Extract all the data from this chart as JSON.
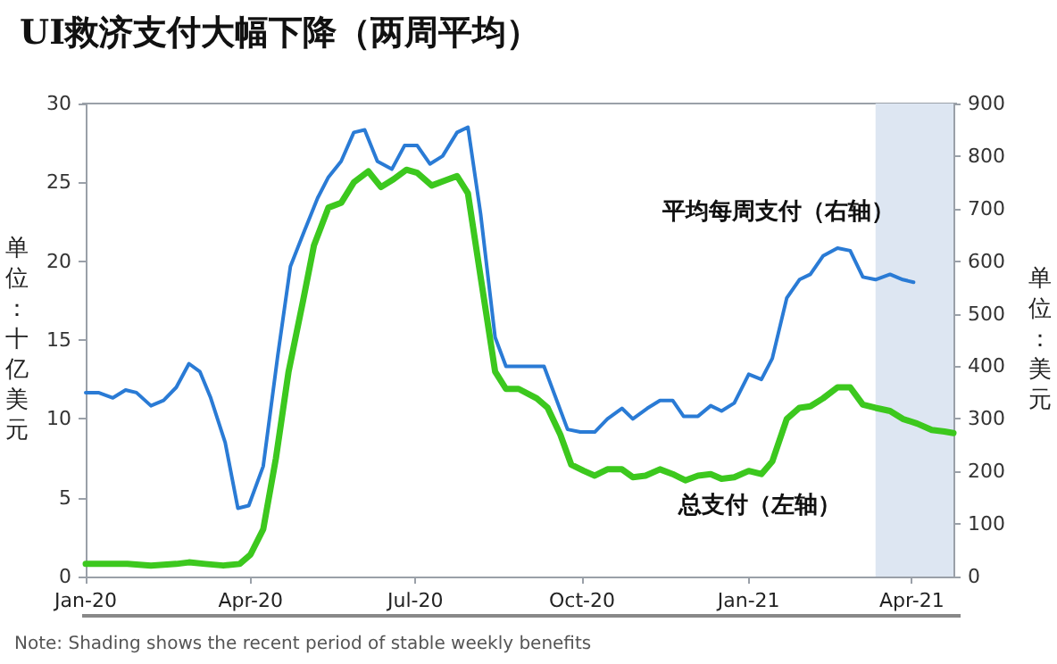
{
  "chart_data": {
    "type": "line",
    "title": "UI救济支付大幅下降（两周平均）",
    "ylabel": "单位：十亿美元",
    "y2label": "单位：美元",
    "annotations": [
      "Note: Shading shows the recent period of stable weekly benefits"
    ],
    "xlim": [
      "2020-01-01",
      "2021-04-24"
    ],
    "xticks": [
      {
        "value": "2020-01-01",
        "label": "Jan-20"
      },
      {
        "value": "2020-04-01",
        "label": "Apr-20"
      },
      {
        "value": "2020-07-01",
        "label": "Jul-20"
      },
      {
        "value": "2020-10-01",
        "label": "Oct-20"
      },
      {
        "value": "2021-01-01",
        "label": "Jan-21"
      },
      {
        "value": "2021-04-01",
        "label": "Apr-21"
      }
    ],
    "ylim": [
      0,
      30
    ],
    "yticks": [
      0,
      5,
      10,
      15,
      20,
      25,
      30
    ],
    "y2lim": [
      0,
      900
    ],
    "y2ticks": [
      0,
      100,
      200,
      300,
      400,
      500,
      600,
      700,
      800,
      900
    ],
    "grid": false,
    "legend": false,
    "marker": "none",
    "line_style": "solid",
    "bands": [
      {
        "axis": "x",
        "from": "2021-03-12",
        "to": "2021-04-24",
        "color": "#dde6f2"
      }
    ],
    "series": [
      {
        "name": "平均每周支付（右轴）",
        "color": "#2a7bd5",
        "axis": "y2",
        "x": [
          "2020-01-01",
          "2020-01-08",
          "2020-01-16",
          "2020-01-23",
          "2020-01-29",
          "2020-02-06",
          "2020-02-13",
          "2020-02-20",
          "2020-02-27",
          "2020-03-04",
          "2020-03-10",
          "2020-03-18",
          "2020-03-25",
          "2020-03-31",
          "2020-04-08",
          "2020-04-16",
          "2020-04-23",
          "2020-05-01",
          "2020-05-08",
          "2020-05-14",
          "2020-05-21",
          "2020-05-28",
          "2020-06-03",
          "2020-06-10",
          "2020-06-18",
          "2020-06-25",
          "2020-07-02",
          "2020-07-09",
          "2020-07-16",
          "2020-07-24",
          "2020-07-30",
          "2020-08-06",
          "2020-08-14",
          "2020-08-20",
          "2020-09-06",
          "2020-09-10",
          "2020-09-23",
          "2020-09-30",
          "2020-10-08",
          "2020-10-15",
          "2020-10-23",
          "2020-10-29",
          "2020-11-06",
          "2020-11-13",
          "2020-11-20",
          "2020-11-26",
          "2020-12-04",
          "2020-12-11",
          "2020-12-17",
          "2020-12-24",
          "2021-01-01",
          "2021-01-08",
          "2021-01-14",
          "2021-01-22",
          "2021-01-29",
          "2021-02-04",
          "2021-02-11",
          "2021-02-19",
          "2021-02-26",
          "2021-03-05",
          "2021-03-12",
          "2021-03-20",
          "2021-03-27",
          "2021-04-02"
        ],
        "values": [
          350,
          350,
          340,
          355,
          350,
          325,
          335,
          360,
          405,
          390,
          340,
          255,
          130,
          135,
          210,
          420,
          590,
          660,
          720,
          760,
          790,
          845,
          850,
          790,
          775,
          820,
          820,
          785,
          800,
          845,
          855,
          690,
          455,
          400,
          400,
          400,
          280,
          275,
          275,
          300,
          320,
          300,
          320,
          335,
          335,
          305,
          305,
          325,
          315,
          330,
          385,
          375,
          415,
          530,
          565,
          575,
          610,
          625,
          620,
          570,
          565,
          575,
          565,
          560
        ]
      },
      {
        "name": "总支付（左轴）",
        "color": "#3cc81e",
        "axis": "y",
        "x": [
          "2020-01-01",
          "2020-01-11",
          "2020-01-24",
          "2020-02-06",
          "2020-02-20",
          "2020-02-27",
          "2020-03-07",
          "2020-03-17",
          "2020-03-26",
          "2020-04-01",
          "2020-04-08",
          "2020-04-15",
          "2020-04-22",
          "2020-04-30",
          "2020-05-06",
          "2020-05-14",
          "2020-05-21",
          "2020-05-28",
          "2020-06-05",
          "2020-06-12",
          "2020-06-19",
          "2020-06-26",
          "2020-07-02",
          "2020-07-10",
          "2020-07-17",
          "2020-07-24",
          "2020-07-30",
          "2020-08-06",
          "2020-08-14",
          "2020-08-20",
          "2020-08-27",
          "2020-09-06",
          "2020-09-12",
          "2020-09-19",
          "2020-09-25",
          "2020-10-02",
          "2020-10-08",
          "2020-10-15",
          "2020-10-23",
          "2020-10-29",
          "2020-11-05",
          "2020-11-13",
          "2020-11-20",
          "2020-11-27",
          "2020-12-04",
          "2020-12-11",
          "2020-12-17",
          "2020-12-24",
          "2021-01-01",
          "2021-01-08",
          "2021-01-14",
          "2021-01-22",
          "2021-01-29",
          "2021-02-04",
          "2021-02-11",
          "2021-02-19",
          "2021-02-26",
          "2021-03-05",
          "2021-03-12",
          "2021-03-20",
          "2021-03-27",
          "2021-04-04",
          "2021-04-12",
          "2021-04-19",
          "2021-04-24"
        ],
        "values": [
          0.8,
          0.8,
          0.8,
          0.7,
          0.8,
          0.9,
          0.8,
          0.7,
          0.8,
          1.4,
          3.0,
          7.5,
          13.0,
          17.5,
          21.0,
          23.4,
          23.7,
          25.0,
          25.7,
          24.7,
          25.2,
          25.8,
          25.6,
          24.8,
          25.1,
          25.4,
          24.3,
          19.0,
          13.0,
          11.9,
          11.9,
          11.3,
          10.7,
          9.0,
          7.1,
          6.7,
          6.4,
          6.8,
          6.8,
          6.3,
          6.4,
          6.8,
          6.5,
          6.1,
          6.4,
          6.5,
          6.2,
          6.3,
          6.7,
          6.5,
          7.3,
          10.0,
          10.7,
          10.8,
          11.3,
          12.0,
          12.0,
          10.9,
          10.7,
          10.5,
          10.0,
          9.7,
          9.3,
          9.2,
          9.1
        ]
      }
    ]
  }
}
